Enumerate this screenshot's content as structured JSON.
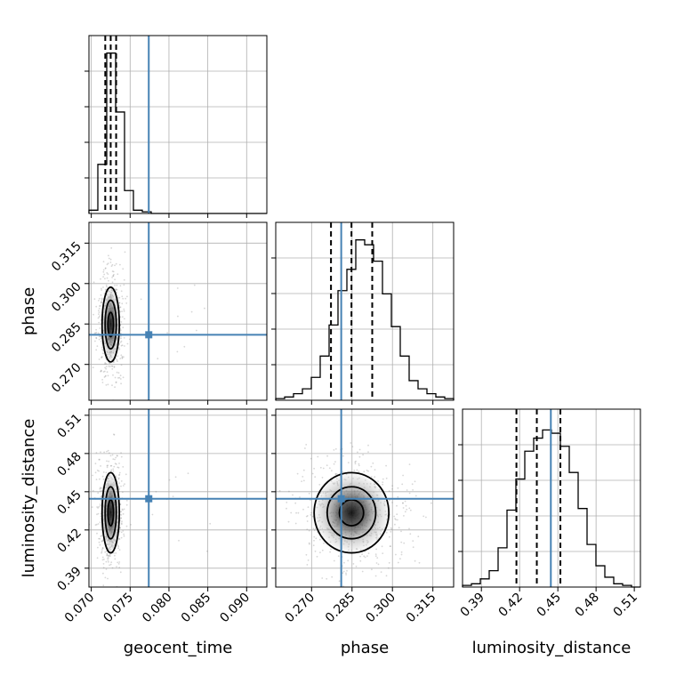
{
  "chart_data": {
    "type": "corner",
    "parameters": [
      "geocent_time",
      "phase",
      "luminosity_distance"
    ],
    "truth_color": "#4682b4",
    "truths": {
      "geocent_time": 0.0774,
      "phase": 0.281,
      "luminosity_distance": 0.4445
    },
    "ranges": {
      "geocent_time": [
        0.0697,
        0.0926
      ],
      "phase": [
        0.2567,
        0.3227
      ],
      "luminosity_distance": [
        0.3752,
        0.5148
      ]
    },
    "ticks": {
      "geocent_time": [
        "0.070",
        "0.075",
        "0.080",
        "0.085",
        "0.090"
      ],
      "phase": [
        "0.270",
        "0.285",
        "0.300",
        "0.315"
      ],
      "luminosity_distance": [
        "0.39",
        "0.42",
        "0.45",
        "0.48",
        "0.51"
      ]
    },
    "tick_values": {
      "geocent_time": [
        0.07,
        0.075,
        0.08,
        0.085,
        0.09
      ],
      "phase": [
        0.27,
        0.285,
        0.3,
        0.315
      ],
      "luminosity_distance": [
        0.39,
        0.42,
        0.45,
        0.48,
        0.51
      ]
    },
    "quantiles": {
      "geocent_time": [
        0.0718,
        0.0725,
        0.0732
      ],
      "phase": [
        0.2772,
        0.2848,
        0.2925
      ],
      "luminosity_distance": [
        0.4175,
        0.4335,
        0.452
      ]
    },
    "medians": {
      "geocent_time": 0.0725,
      "phase": 0.2848,
      "luminosity_distance": 0.4335
    },
    "spreads": {
      "geocent_time": 0.0006,
      "phase": 0.0075,
      "luminosity_distance": 0.017
    },
    "histograms": {
      "geocent_time": [
        0.02,
        0.3,
        0.98,
        0.62,
        0.14,
        0.02,
        0.01,
        0,
        0,
        0,
        0,
        0,
        0,
        0,
        0,
        0,
        0,
        0,
        0,
        0
      ],
      "phase": [
        0.01,
        0.02,
        0.04,
        0.07,
        0.14,
        0.27,
        0.46,
        0.67,
        0.8,
        0.98,
        0.95,
        0.85,
        0.65,
        0.45,
        0.27,
        0.12,
        0.07,
        0.04,
        0.02,
        0.01
      ],
      "luminosity_distance": [
        0.01,
        0.02,
        0.05,
        0.1,
        0.24,
        0.47,
        0.66,
        0.83,
        0.91,
        0.96,
        0.94,
        0.86,
        0.7,
        0.48,
        0.26,
        0.13,
        0.06,
        0.02,
        0.01,
        0.0
      ]
    },
    "grid": true,
    "legend": "none"
  }
}
